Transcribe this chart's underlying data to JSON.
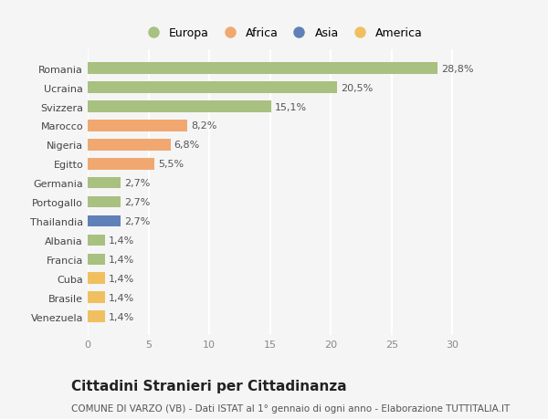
{
  "categories": [
    "Venezuela",
    "Brasile",
    "Cuba",
    "Francia",
    "Albania",
    "Thailandia",
    "Portogallo",
    "Germania",
    "Egitto",
    "Nigeria",
    "Marocco",
    "Svizzera",
    "Ucraina",
    "Romania"
  ],
  "values": [
    1.4,
    1.4,
    1.4,
    1.4,
    1.4,
    2.7,
    2.7,
    2.7,
    5.5,
    6.8,
    8.2,
    15.1,
    20.5,
    28.8
  ],
  "labels": [
    "1,4%",
    "1,4%",
    "1,4%",
    "1,4%",
    "1,4%",
    "2,7%",
    "2,7%",
    "2,7%",
    "5,5%",
    "6,8%",
    "8,2%",
    "15,1%",
    "20,5%",
    "28,8%"
  ],
  "colors": [
    "#f0c060",
    "#f0c060",
    "#f0c060",
    "#a8c080",
    "#a8c080",
    "#6080b8",
    "#a8c080",
    "#a8c080",
    "#f0a870",
    "#f0a870",
    "#f0a870",
    "#a8c080",
    "#a8c080",
    "#a8c080"
  ],
  "legend": [
    {
      "label": "Europa",
      "color": "#a8c080"
    },
    {
      "label": "Africa",
      "color": "#f0a870"
    },
    {
      "label": "Asia",
      "color": "#6080b8"
    },
    {
      "label": "America",
      "color": "#f0c060"
    }
  ],
  "xlim": [
    0,
    32
  ],
  "xticks": [
    0,
    5,
    10,
    15,
    20,
    25,
    30
  ],
  "title": "Cittadini Stranieri per Cittadinanza",
  "subtitle": "COMUNE DI VARZO (VB) - Dati ISTAT al 1° gennaio di ogni anno - Elaborazione TUTTITALIA.IT",
  "bg_color": "#f5f5f5",
  "grid_color": "#ffffff",
  "bar_height": 0.6,
  "label_fontsize": 8,
  "tick_fontsize": 8,
  "title_fontsize": 11,
  "subtitle_fontsize": 7.5,
  "legend_fontsize": 9
}
